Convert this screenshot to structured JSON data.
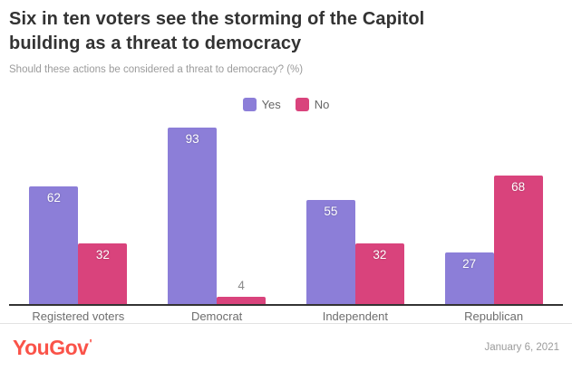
{
  "header": {
    "title": "Six in ten voters see the storming of the Capitol building as a threat to democracy",
    "subtitle": "Should these actions be considered a threat to democracy? (%)"
  },
  "legend": [
    {
      "label": "Yes",
      "color": "#8c7ed8"
    },
    {
      "label": "No",
      "color": "#d9437c"
    }
  ],
  "chart_data": {
    "type": "bar",
    "title": "Six in ten voters see the storming of the Capitol building as a threat to democracy",
    "subtitle": "Should these actions be considered a threat to democracy? (%)",
    "categories": [
      "Registered voters",
      "Democrat",
      "Independent",
      "Republican"
    ],
    "series": [
      {
        "name": "Yes",
        "color": "#8c7ed8",
        "values": [
          62,
          93,
          55,
          27
        ]
      },
      {
        "name": "No",
        "color": "#d9437c",
        "values": [
          32,
          4,
          32,
          68
        ]
      }
    ],
    "xlabel": "",
    "ylabel": "",
    "ylim": [
      0,
      97
    ],
    "grid": false,
    "legend_position": "top-center",
    "value_labels": "on-bars"
  },
  "footer": {
    "logo_text": "YouGov",
    "logo_color": "#fa5349",
    "date": "January 6, 2021"
  },
  "colors": {
    "title_text": "#333333",
    "subtitle_text": "#9b9b9b",
    "axis_line": "#333333",
    "category_text": "#6e6e6e",
    "bar_label_inside": "#ffffff",
    "bar_label_outside": "#8a8a8a",
    "divider": "#e2e2e2"
  }
}
